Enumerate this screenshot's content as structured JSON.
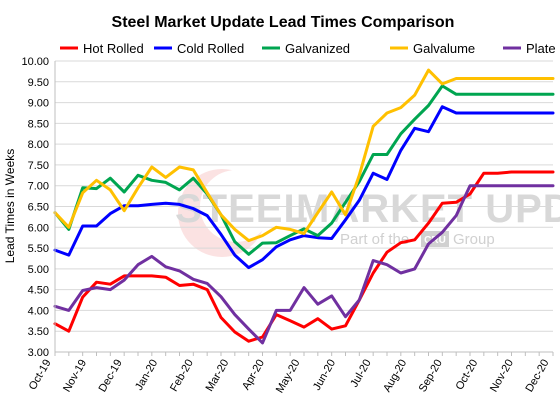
{
  "chart_data": {
    "type": "line",
    "title": "Steel Market Update Lead Times Comparison",
    "ylabel": "Lead Times in Weeks",
    "xlabel": "",
    "ylim": [
      3.0,
      10.0
    ],
    "yticks": [
      "3.00",
      "3.50",
      "4.00",
      "4.50",
      "5.00",
      "5.50",
      "6.00",
      "6.50",
      "7.00",
      "7.50",
      "8.00",
      "8.50",
      "9.00",
      "9.50",
      "10.00"
    ],
    "xticks": [
      "Oct-19",
      "Nov-19",
      "Dec-19",
      "Jan-20",
      "Feb-20",
      "Mar-20",
      "Apr-20",
      "May-20",
      "Jun-20",
      "Jul-20",
      "Aug-20",
      "Sep-20",
      "Oct-20",
      "Nov-20",
      "Dec-20"
    ],
    "x_count": 37,
    "grid": "horizontal",
    "legend_position": "top",
    "watermark": {
      "brand_left": "STEEL",
      "brand_right": "MARKET UPDATE",
      "tagline_left": "Part of the",
      "tagline_box": "CRU",
      "tagline_right": "Group"
    },
    "series": [
      {
        "name": "Hot Rolled",
        "color": "#ff0000",
        "values": [
          3.68,
          3.5,
          4.32,
          4.68,
          4.63,
          4.83,
          4.83,
          4.83,
          4.8,
          4.6,
          4.63,
          4.5,
          3.83,
          3.48,
          3.26,
          3.36,
          3.9,
          3.75,
          3.6,
          3.8,
          3.55,
          3.63,
          4.25,
          4.9,
          5.4,
          5.63,
          5.7,
          6.1,
          6.58,
          6.6,
          6.8,
          7.3,
          7.3,
          7.33,
          7.33,
          7.33,
          7.33
        ]
      },
      {
        "name": "Cold Rolled",
        "color": "#0000ff",
        "values": [
          5.45,
          5.33,
          6.03,
          6.03,
          6.33,
          6.52,
          6.52,
          6.55,
          6.58,
          6.55,
          6.45,
          6.28,
          5.83,
          5.33,
          5.03,
          5.22,
          5.53,
          5.7,
          5.8,
          5.75,
          5.73,
          6.18,
          6.65,
          7.3,
          7.15,
          7.85,
          8.38,
          8.3,
          8.9,
          8.75,
          8.75,
          8.75,
          8.75,
          8.75,
          8.75,
          8.75,
          8.75
        ]
      },
      {
        "name": "Galvanized",
        "color": "#00a550",
        "values": [
          6.35,
          5.95,
          6.95,
          6.93,
          7.18,
          6.85,
          7.25,
          7.13,
          7.08,
          6.9,
          7.18,
          6.8,
          6.3,
          5.65,
          5.35,
          5.62,
          5.63,
          5.8,
          5.96,
          5.8,
          6.1,
          6.6,
          7.1,
          7.75,
          7.75,
          8.25,
          8.6,
          8.93,
          9.4,
          9.2,
          9.2,
          9.2,
          9.2,
          9.2,
          9.2,
          9.2,
          9.2
        ]
      },
      {
        "name": "Galvalume",
        "color": "#ffc000",
        "values": [
          6.35,
          6.0,
          6.83,
          7.13,
          6.9,
          6.4,
          6.95,
          7.45,
          7.2,
          7.45,
          7.38,
          6.83,
          6.3,
          5.95,
          5.68,
          5.8,
          6.0,
          5.95,
          5.85,
          6.35,
          6.85,
          6.3,
          7.25,
          8.43,
          8.75,
          8.88,
          9.18,
          9.78,
          9.45,
          9.58,
          9.58,
          9.58,
          9.58,
          9.58,
          9.58,
          9.58,
          9.58
        ]
      },
      {
        "name": "Plate",
        "color": "#7030a0",
        "values": [
          4.1,
          4.0,
          4.48,
          4.55,
          4.5,
          4.73,
          5.1,
          5.3,
          5.05,
          4.95,
          4.75,
          4.65,
          4.33,
          3.9,
          3.55,
          3.22,
          4.0,
          4.0,
          4.55,
          4.15,
          4.35,
          3.85,
          4.25,
          5.2,
          5.1,
          4.9,
          5.0,
          5.6,
          5.88,
          6.28,
          7.0,
          7.0,
          7.0,
          7.0,
          7.0,
          7.0,
          7.0
        ]
      }
    ]
  }
}
